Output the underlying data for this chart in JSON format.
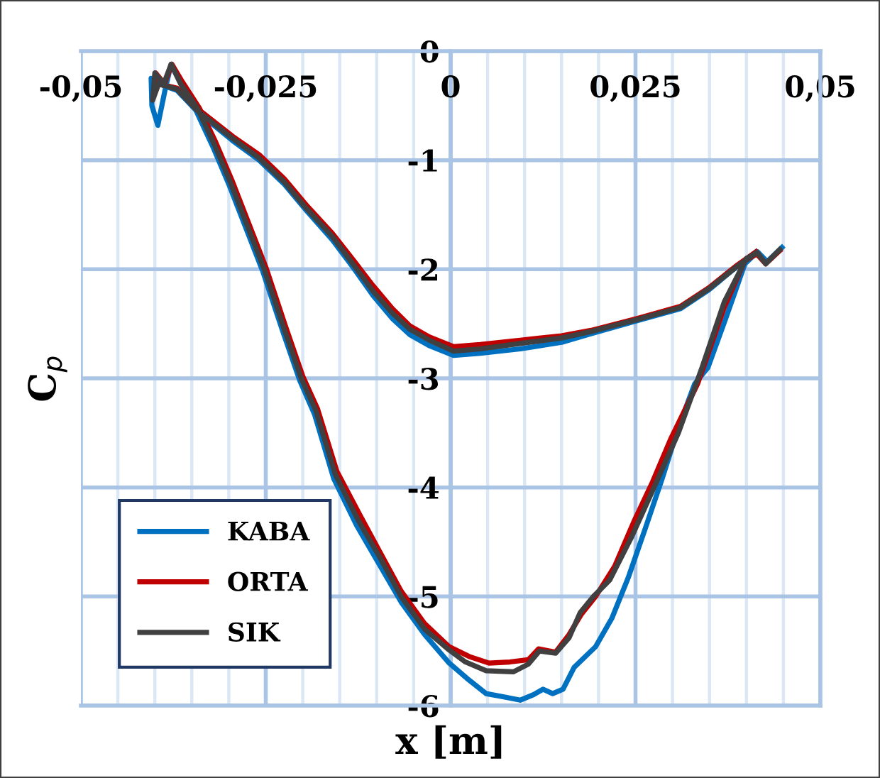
{
  "chart_data": {
    "type": "line",
    "xlabel": "x [m]",
    "ylabel": "C$_{p}$",
    "xlim": [
      -0.05,
      0.05
    ],
    "ylim": [
      -6,
      0
    ],
    "xticks": [
      {
        "value": -0.05,
        "label": "-0,05"
      },
      {
        "value": -0.045,
        "label": null
      },
      {
        "value": -0.04,
        "label": null
      },
      {
        "value": -0.035,
        "label": null
      },
      {
        "value": -0.03,
        "label": null
      },
      {
        "value": -0.025,
        "label": "-0,025"
      },
      {
        "value": -0.02,
        "label": null
      },
      {
        "value": -0.015,
        "label": null
      },
      {
        "value": -0.01,
        "label": null
      },
      {
        "value": -0.005,
        "label": null
      },
      {
        "value": 0,
        "label": "0"
      },
      {
        "value": 0.005,
        "label": null
      },
      {
        "value": 0.01,
        "label": null
      },
      {
        "value": 0.015,
        "label": null
      },
      {
        "value": 0.02,
        "label": null
      },
      {
        "value": 0.025,
        "label": "0,025"
      },
      {
        "value": 0.03,
        "label": null
      },
      {
        "value": 0.035,
        "label": null
      },
      {
        "value": 0.04,
        "label": null
      },
      {
        "value": 0.045,
        "label": null
      },
      {
        "value": 0.05,
        "label": "0,05"
      }
    ],
    "yticks": [
      -6,
      -5,
      -4,
      -3,
      -2,
      -1,
      0
    ],
    "grid": true,
    "legend": "bottom left",
    "marker": "none",
    "line_style": "solid",
    "series": [
      {
        "name": "KABA",
        "color": "#0070c0",
        "x": [
          0.0448,
          0.0428,
          0.0415,
          0.0398,
          0.0372,
          0.0348,
          0.033,
          0.0308,
          0.0286,
          0.0263,
          0.024,
          0.0218,
          0.0196,
          0.0167,
          0.0152,
          0.0138,
          0.0125,
          0.0112,
          0.0094,
          0.0072,
          0.0048,
          0.0022,
          -0.0002,
          -0.0035,
          -0.0067,
          -0.0097,
          -0.0127,
          -0.0158,
          -0.0184,
          -0.0204,
          -0.0227,
          -0.0254,
          -0.0277,
          -0.03,
          -0.0322,
          -0.0344,
          -0.0365,
          -0.0378,
          -0.0386,
          -0.0396,
          -0.0404,
          -0.0405,
          -0.0395,
          -0.037,
          -0.0342,
          -0.0295,
          -0.0259,
          -0.0225,
          -0.0194,
          -0.016,
          -0.013,
          -0.0105,
          -0.0079,
          -0.0055,
          -0.0029,
          0.0004,
          0.004,
          0.0094,
          0.015,
          0.019,
          0.0253,
          0.0311,
          0.0349,
          0.0388,
          0.0413
        ],
        "values": [
          -1.8,
          -1.93,
          -1.84,
          -1.95,
          -2.45,
          -2.9,
          -3.05,
          -3.45,
          -3.92,
          -4.38,
          -4.83,
          -5.2,
          -5.46,
          -5.65,
          -5.85,
          -5.89,
          -5.85,
          -5.9,
          -5.95,
          -5.92,
          -5.89,
          -5.75,
          -5.61,
          -5.35,
          -5.05,
          -4.7,
          -4.35,
          -3.92,
          -3.33,
          -3.02,
          -2.57,
          -2.02,
          -1.62,
          -1.22,
          -0.87,
          -0.55,
          -0.3,
          -0.12,
          -0.35,
          -0.68,
          -0.5,
          -0.25,
          -0.3,
          -0.36,
          -0.56,
          -0.82,
          -1.0,
          -1.22,
          -1.47,
          -1.73,
          -2.0,
          -2.24,
          -2.45,
          -2.6,
          -2.7,
          -2.79,
          -2.77,
          -2.73,
          -2.67,
          -2.59,
          -2.47,
          -2.36,
          -2.19,
          -1.97,
          -1.84
        ]
      },
      {
        "name": "ORTA",
        "color": "#c00000",
        "x": [
          0.0445,
          0.0426,
          0.0414,
          0.0398,
          0.037,
          0.0352,
          0.0334,
          0.0316,
          0.0298,
          0.0273,
          0.0248,
          0.0222,
          0.0196,
          0.0177,
          0.016,
          0.0142,
          0.0119,
          0.0105,
          0.008,
          0.0052,
          0.0025,
          -0.0002,
          -0.0035,
          -0.0067,
          -0.0095,
          -0.0123,
          -0.0154,
          -0.018,
          -0.02,
          -0.0223,
          -0.025,
          -0.0273,
          -0.0296,
          -0.0318,
          -0.034,
          -0.0363,
          -0.0377,
          -0.0387,
          -0.0399,
          -0.0402,
          -0.0395,
          -0.037,
          -0.0342,
          -0.0295,
          -0.0259,
          -0.0225,
          -0.0194,
          -0.016,
          -0.013,
          -0.0105,
          -0.0079,
          -0.0055,
          -0.0029,
          0.0004,
          0.004,
          0.0094,
          0.015,
          0.019,
          0.0253,
          0.0311,
          0.0349,
          0.0388,
          0.0413
        ],
        "values": [
          -1.83,
          -1.95,
          -1.86,
          -1.92,
          -2.35,
          -2.7,
          -3.05,
          -3.3,
          -3.55,
          -3.95,
          -4.31,
          -4.72,
          -5.0,
          -5.16,
          -5.35,
          -5.51,
          -5.48,
          -5.58,
          -5.6,
          -5.61,
          -5.55,
          -5.46,
          -5.25,
          -4.95,
          -4.6,
          -4.25,
          -3.85,
          -3.28,
          -2.98,
          -2.53,
          -1.98,
          -1.58,
          -1.18,
          -0.83,
          -0.52,
          -0.28,
          -0.12,
          -0.3,
          -0.2,
          -0.42,
          -0.3,
          -0.34,
          -0.53,
          -0.78,
          -0.95,
          -1.17,
          -1.42,
          -1.67,
          -1.93,
          -2.15,
          -2.36,
          -2.52,
          -2.62,
          -2.71,
          -2.69,
          -2.65,
          -2.61,
          -2.56,
          -2.45,
          -2.34,
          -2.17,
          -1.96,
          -1.84
        ]
      },
      {
        "name": "SIK",
        "color": "#404040",
        "x": [
          0.0445,
          0.0426,
          0.0415,
          0.04,
          0.037,
          0.034,
          0.0308,
          0.0275,
          0.0245,
          0.0215,
          0.0193,
          0.0175,
          0.016,
          0.0142,
          0.012,
          0.0105,
          0.0085,
          0.0048,
          0.002,
          -0.0002,
          -0.0035,
          -0.0067,
          -0.0095,
          -0.0125,
          -0.0156,
          -0.0182,
          -0.0202,
          -0.0225,
          -0.0252,
          -0.0275,
          -0.0298,
          -0.032,
          -0.0342,
          -0.0365,
          -0.0378,
          -0.0388,
          -0.04,
          -0.0403,
          -0.0395,
          -0.037,
          -0.0342,
          -0.0295,
          -0.0259,
          -0.0225,
          -0.0194,
          -0.016,
          -0.013,
          -0.0105,
          -0.0079,
          -0.0055,
          -0.0029,
          0.0004,
          0.004,
          0.0094,
          0.015,
          0.019,
          0.0253,
          0.0311,
          0.0349,
          0.0388,
          0.0413
        ],
        "values": [
          -1.82,
          -1.95,
          -1.85,
          -1.9,
          -2.3,
          -2.9,
          -3.5,
          -4.0,
          -4.45,
          -4.85,
          -5.0,
          -5.15,
          -5.38,
          -5.52,
          -5.5,
          -5.62,
          -5.69,
          -5.68,
          -5.6,
          -5.49,
          -5.3,
          -5.0,
          -4.65,
          -4.3,
          -3.88,
          -3.3,
          -3.0,
          -2.55,
          -2.0,
          -1.6,
          -1.2,
          -0.85,
          -0.53,
          -0.3,
          -0.12,
          -0.3,
          -0.2,
          -0.45,
          -0.3,
          -0.35,
          -0.55,
          -0.8,
          -0.98,
          -1.2,
          -1.45,
          -1.7,
          -1.97,
          -2.2,
          -2.4,
          -2.55,
          -2.65,
          -2.75,
          -2.73,
          -2.68,
          -2.63,
          -2.57,
          -2.46,
          -2.35,
          -2.18,
          -1.97,
          -1.85
        ]
      }
    ]
  }
}
